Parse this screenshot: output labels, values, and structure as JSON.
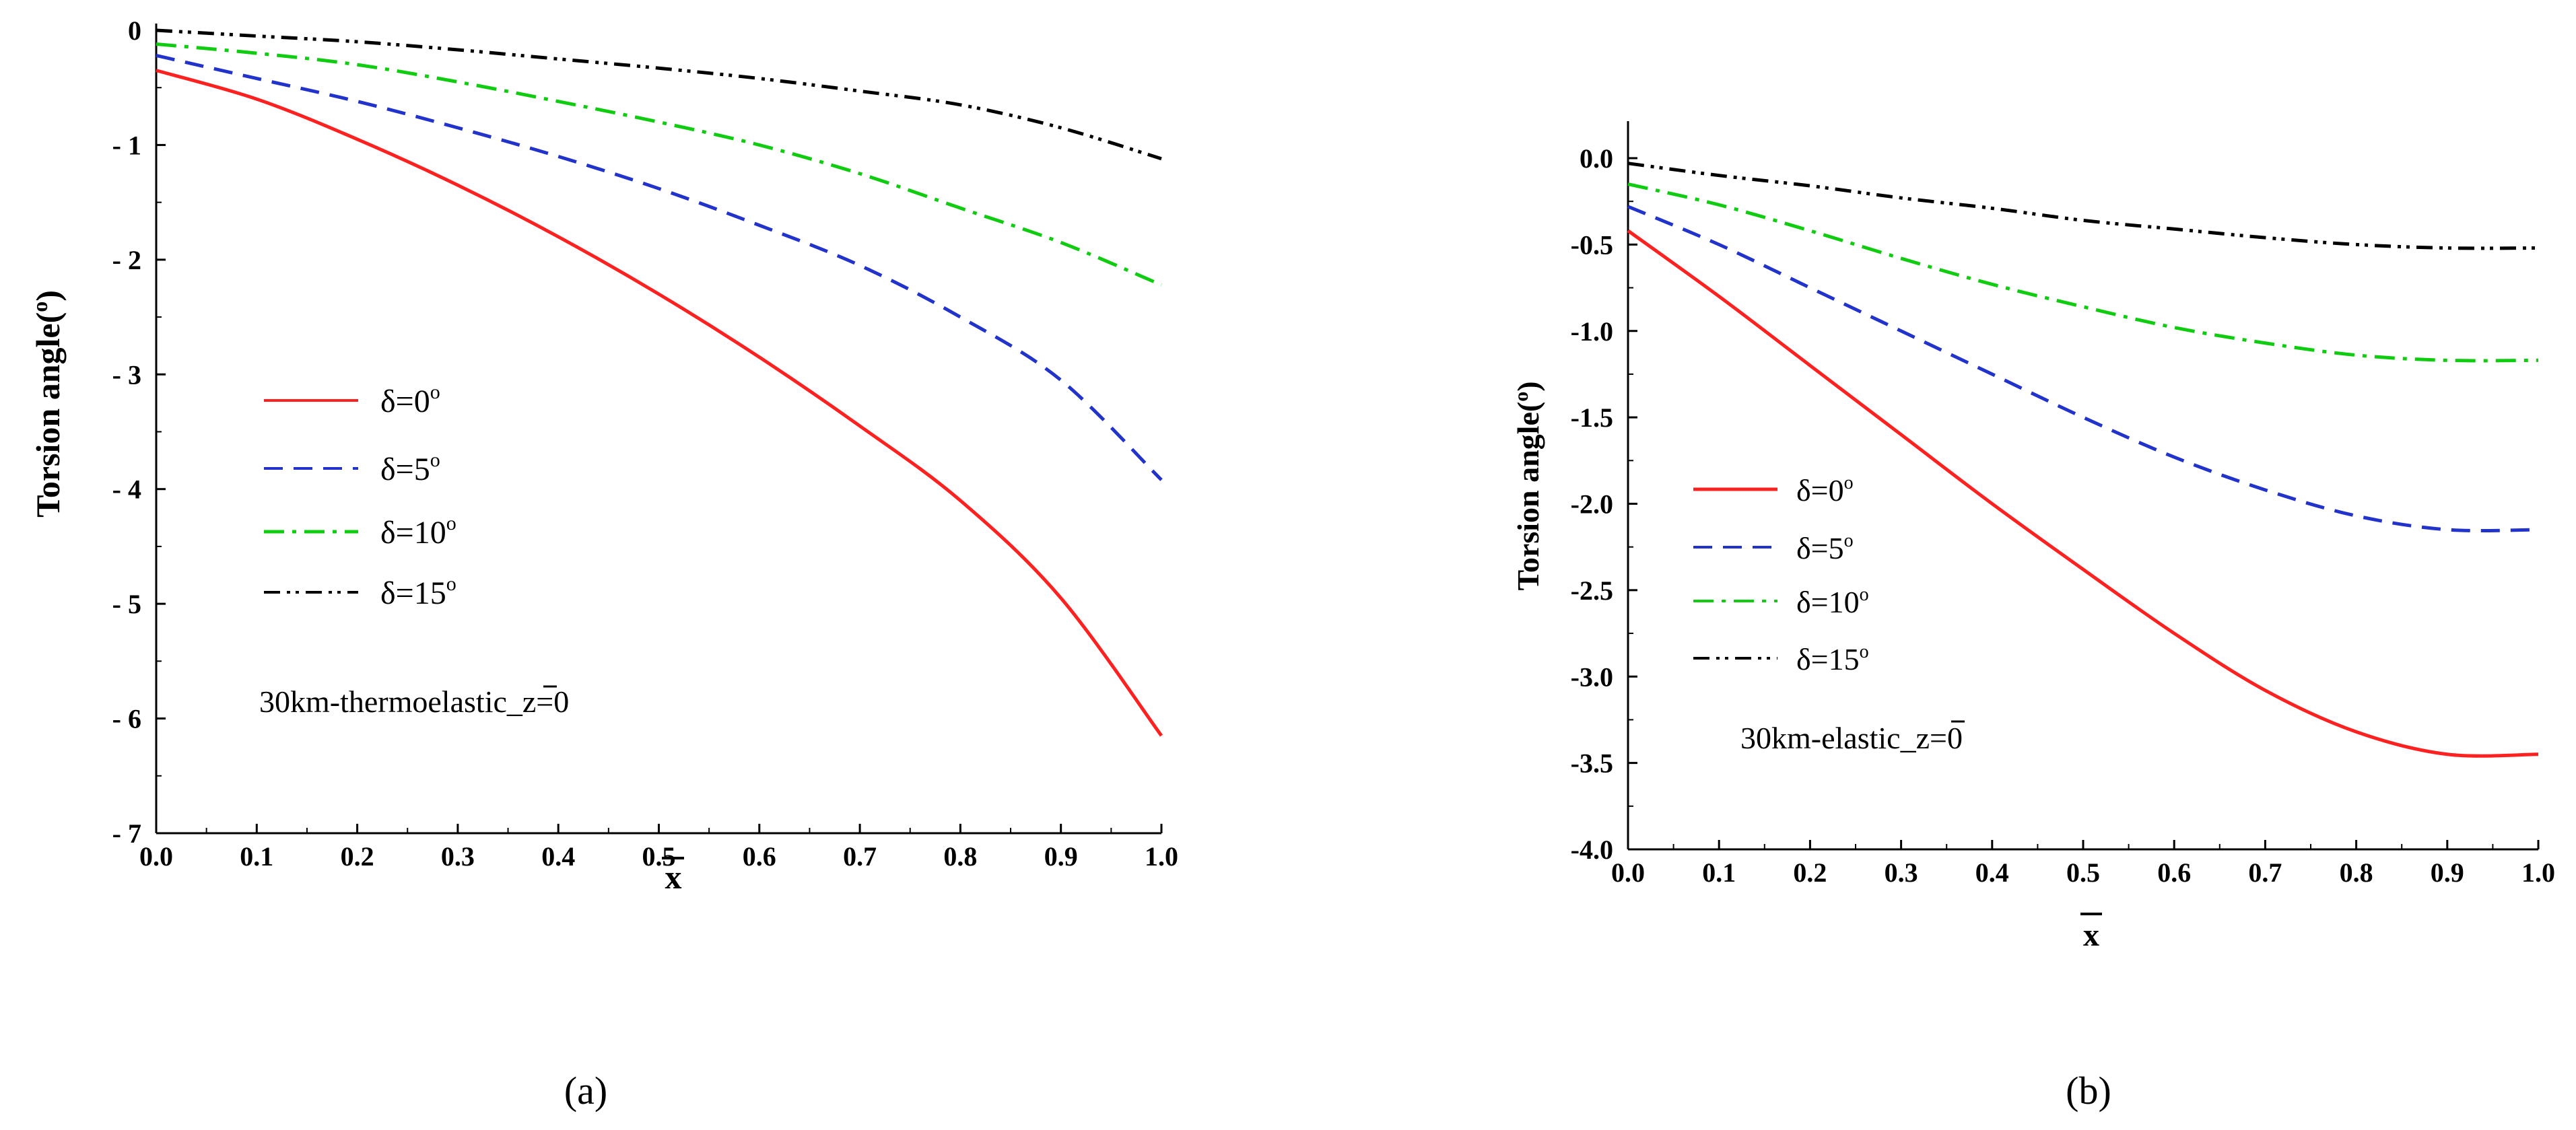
{
  "chart_data": [
    {
      "type": "line",
      "panel_caption": "(a)",
      "xlabel": "x",
      "ylabel": "Torsion angle(o)",
      "xlim": [
        0.0,
        1.0
      ],
      "ylim": [
        -7,
        0
      ],
      "xticks": [
        "0.0",
        "0.1",
        "0.2",
        "0.3",
        "0.4",
        "0.5",
        "0.6",
        "0.7",
        "0.8",
        "0.9",
        "1.0"
      ],
      "yticks": [
        "0",
        "- 1",
        "- 2",
        "- 3",
        "- 4",
        "- 5",
        "- 6",
        "- 7"
      ],
      "annotation": "30km-thermoelastic_z=0",
      "x": [
        0.0,
        0.1,
        0.2,
        0.3,
        0.4,
        0.5,
        0.6,
        0.7,
        0.8,
        0.9,
        1.0
      ],
      "series": [
        {
          "name": "δ=0",
          "sup": "o",
          "color": "#ff2020",
          "dash": "",
          "values": [
            -0.35,
            -0.6,
            -0.95,
            -1.35,
            -1.8,
            -2.3,
            -2.85,
            -3.45,
            -4.1,
            -4.95,
            -6.15
          ]
        },
        {
          "name": "δ=5",
          "sup": "o",
          "color": "#2233cc",
          "dash": "28,16",
          "values": [
            -0.22,
            -0.42,
            -0.62,
            -0.85,
            -1.1,
            -1.38,
            -1.7,
            -2.05,
            -2.5,
            -3.05,
            -3.92
          ]
        },
        {
          "name": "δ=10",
          "sup": "o",
          "color": "#10cc10",
          "dash": "30,12,6,12",
          "values": [
            -0.12,
            -0.2,
            -0.3,
            -0.45,
            -0.62,
            -0.8,
            -1.0,
            -1.25,
            -1.55,
            -1.85,
            -2.22
          ]
        },
        {
          "name": "δ=15",
          "sup": "o",
          "color": "#000000",
          "dash": "24,10,5,8,5,10",
          "values": [
            0.0,
            -0.05,
            -0.1,
            -0.17,
            -0.25,
            -0.33,
            -0.42,
            -0.53,
            -0.65,
            -0.85,
            -1.12
          ]
        }
      ]
    },
    {
      "type": "line",
      "panel_caption": "(b)",
      "xlabel": "x",
      "ylabel": "Torsion angle(o)",
      "xlim": [
        0.0,
        1.0
      ],
      "ylim": [
        0.0,
        4.0
      ],
      "y_inverted": true,
      "xticks": [
        "0.0",
        "0.1",
        "0.2",
        "0.3",
        "0.4",
        "0.5",
        "0.6",
        "0.7",
        "0.8",
        "0.9",
        "1.0"
      ],
      "yticks": [
        "0.0",
        "0.5",
        "1.0",
        "1.5",
        "2.0",
        "2.5",
        "3.0",
        "3.5",
        "4.0"
      ],
      "ytick_prefix": "-",
      "annotation": "30km-elastic_z=0",
      "x": [
        0.0,
        0.1,
        0.2,
        0.3,
        0.4,
        0.5,
        0.6,
        0.7,
        0.8,
        0.9,
        1.0
      ],
      "series": [
        {
          "name": "δ=0",
          "sup": "o",
          "color": "#ff2020",
          "dash": "",
          "values": [
            0.42,
            0.8,
            1.2,
            1.6,
            2.0,
            2.38,
            2.75,
            3.08,
            3.32,
            3.45,
            3.45
          ]
        },
        {
          "name": "δ=5",
          "sup": "o",
          "color": "#2233cc",
          "dash": "28,16",
          "values": [
            0.28,
            0.5,
            0.75,
            1.0,
            1.25,
            1.5,
            1.73,
            1.92,
            2.07,
            2.15,
            2.15
          ]
        },
        {
          "name": "δ=10",
          "sup": "o",
          "color": "#10cc10",
          "dash": "30,12,6,12",
          "values": [
            0.15,
            0.27,
            0.42,
            0.58,
            0.73,
            0.86,
            0.98,
            1.07,
            1.14,
            1.17,
            1.17
          ]
        },
        {
          "name": "δ=15",
          "sup": "o",
          "color": "#000000",
          "dash": "24,10,5,8,5,10",
          "values": [
            0.03,
            0.1,
            0.16,
            0.23,
            0.29,
            0.36,
            0.41,
            0.46,
            0.5,
            0.52,
            0.52
          ]
        }
      ]
    }
  ]
}
